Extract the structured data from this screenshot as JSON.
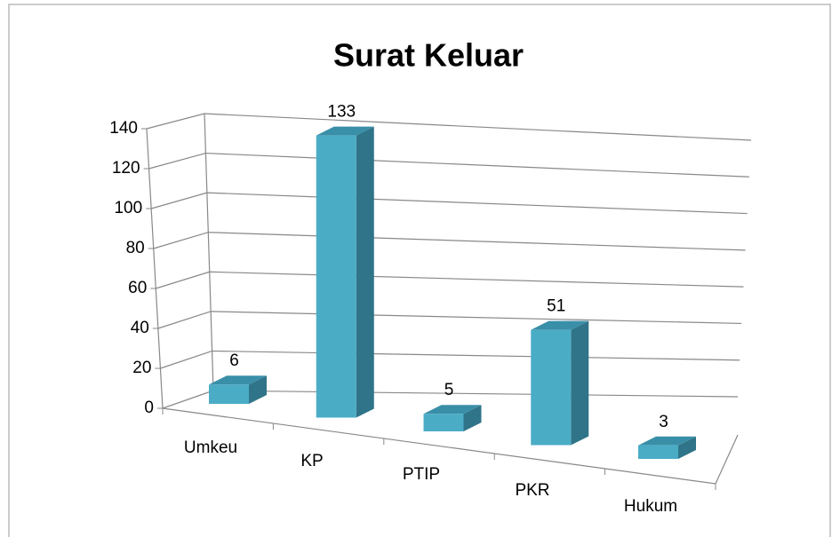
{
  "chart_data": {
    "type": "bar3d",
    "title": "Surat Keluar",
    "categories": [
      "Umkeu",
      "KP",
      "PTIP",
      "PKR",
      "Hukum"
    ],
    "values": [
      6,
      133,
      5,
      51,
      3
    ],
    "color": "#4bacc6",
    "ylim": [
      0,
      140
    ],
    "yticks": [
      0,
      20,
      40,
      60,
      80,
      100,
      120,
      140
    ],
    "grid": true
  }
}
